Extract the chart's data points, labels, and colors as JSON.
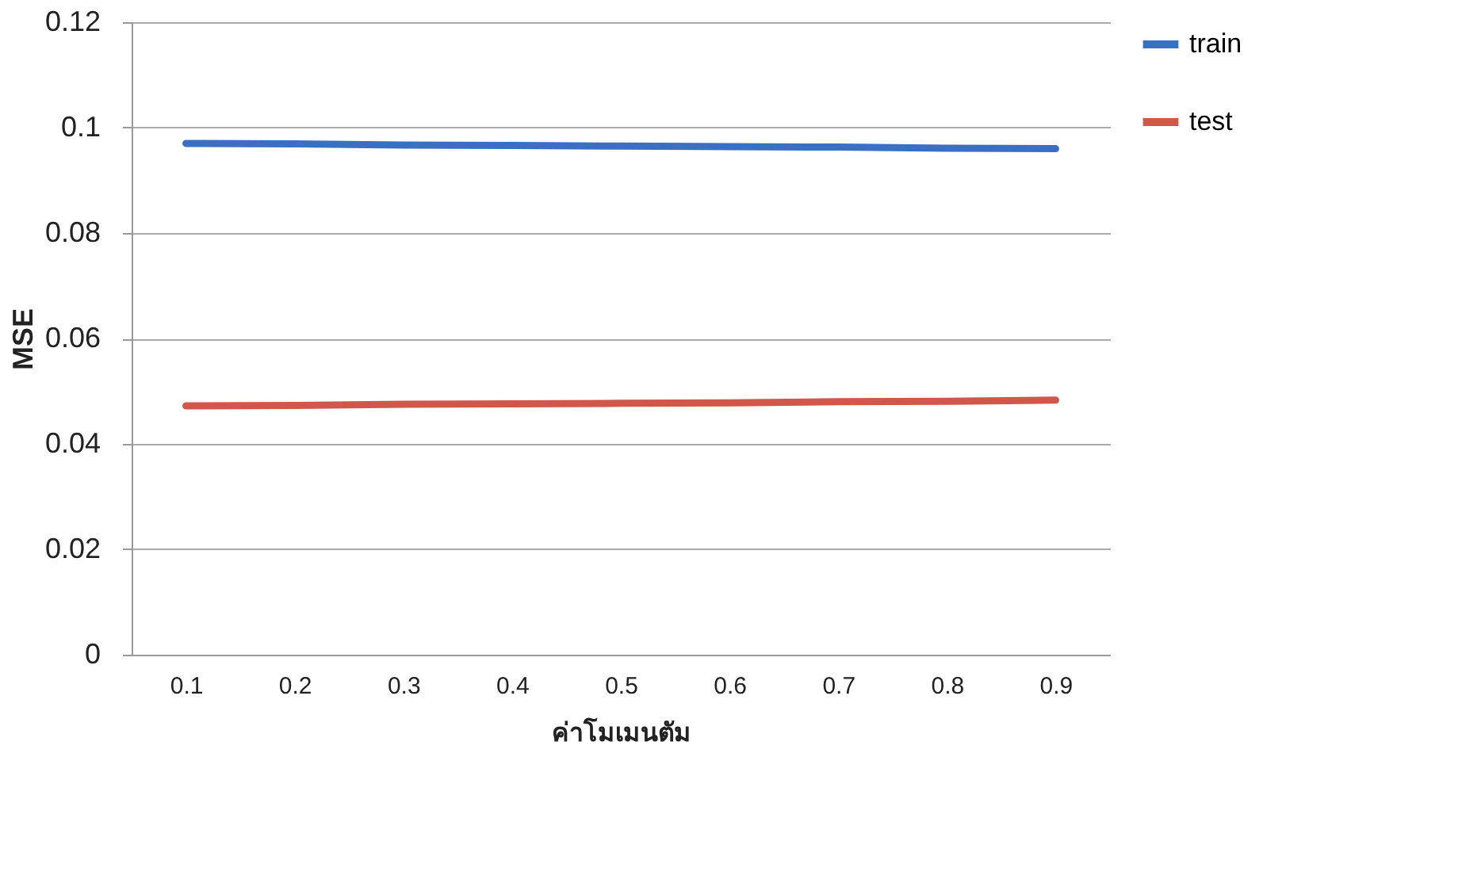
{
  "chart_data": {
    "type": "line",
    "xlabel": "ค่าโมเมนตัม",
    "ylabel": "MSE",
    "categories": [
      "0.1",
      "0.2",
      "0.3",
      "0.4",
      "0.5",
      "0.6",
      "0.7",
      "0.8",
      "0.9"
    ],
    "series": [
      {
        "name": "train",
        "color": "#3a6fc4",
        "values": [
          0.097,
          0.0969,
          0.0967,
          0.0966,
          0.0965,
          0.0964,
          0.0963,
          0.0961,
          0.096
        ]
      },
      {
        "name": "test",
        "color": "#d0574a",
        "values": [
          0.0472,
          0.0473,
          0.0475,
          0.0476,
          0.0477,
          0.0478,
          0.048,
          0.0481,
          0.0483
        ]
      }
    ],
    "ylim": [
      0,
      0.12
    ],
    "yticks": [
      0,
      0.02,
      0.04,
      0.06,
      0.08,
      0.1,
      0.12
    ],
    "grid": "y",
    "legend": "right",
    "marker": "none",
    "line_style": "solid"
  }
}
